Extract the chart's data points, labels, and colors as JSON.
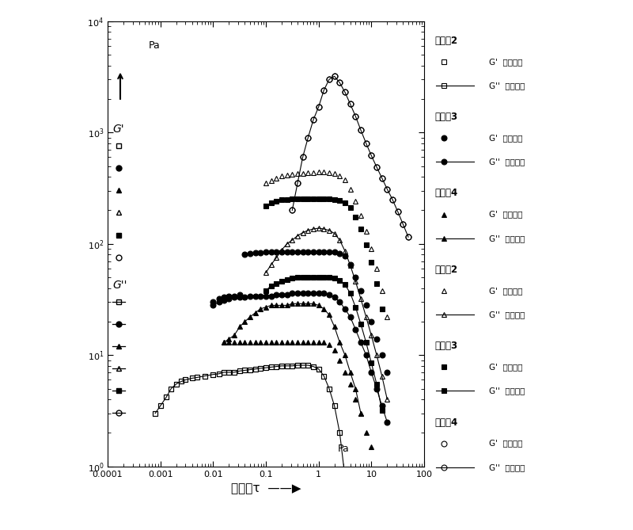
{
  "background_color": "#ffffff",
  "xlim_left": 0.0004,
  "xlim_right": 100,
  "ylim_bottom": 1.0,
  "ylim_top": 10000,
  "xlabel": "剪应力τ  ——▶",
  "xtick_vals": [
    0.0001,
    0.001,
    0.01,
    0.1,
    1,
    10,
    100
  ],
  "xtick_labels": [
    "0.0001",
    "0.001",
    "0.01",
    "0.1",
    "1",
    "10",
    "100"
  ],
  "ytick_vals": [
    1,
    10,
    100,
    1000,
    10000
  ],
  "ytick_labels": [
    "10$^0$",
    "10$^1$",
    "10$^2$",
    "10$^3$",
    "10$^4$"
  ],
  "series": [
    {
      "label": "ex2_Gprime",
      "marker": "s",
      "fillstyle": "none",
      "linestyle": "none",
      "color": "black",
      "ms": 4.5,
      "x": [
        0.0008,
        0.001,
        0.0013,
        0.0016,
        0.002,
        0.0025,
        0.003,
        0.004,
        0.005,
        0.007,
        0.01,
        0.013,
        0.016,
        0.02,
        0.025,
        0.032,
        0.04,
        0.05,
        0.063,
        0.079,
        0.1,
        0.126,
        0.158,
        0.2,
        0.251,
        0.316,
        0.398,
        0.5,
        0.631,
        0.794,
        1.0,
        1.259,
        1.585,
        1.995,
        2.512,
        3.162
      ],
      "y": [
        3.0,
        3.5,
        4.2,
        5.0,
        5.5,
        5.8,
        6.0,
        6.2,
        6.3,
        6.5,
        6.7,
        6.8,
        7.0,
        7.0,
        7.0,
        7.2,
        7.3,
        7.4,
        7.5,
        7.6,
        7.7,
        7.8,
        7.9,
        8.0,
        8.0,
        8.0,
        8.1,
        8.1,
        8.1,
        7.9,
        7.5,
        6.5,
        5.0,
        3.5,
        2.0,
        0.8
      ]
    },
    {
      "label": "ex2_Gdprime",
      "marker": "s",
      "fillstyle": "none",
      "linestyle": "-",
      "color": "black",
      "ms": 4.5,
      "x": [
        0.0008,
        0.001,
        0.0013,
        0.0016,
        0.002,
        0.0025,
        0.003,
        0.004,
        0.005,
        0.007,
        0.01,
        0.013,
        0.016,
        0.02,
        0.025,
        0.032,
        0.04,
        0.05,
        0.063,
        0.079,
        0.1,
        0.126,
        0.158,
        0.2,
        0.251,
        0.316,
        0.398,
        0.5,
        0.631,
        0.794,
        1.0,
        1.259,
        1.585,
        1.995,
        2.512,
        3.162
      ],
      "y": [
        3.0,
        3.5,
        4.2,
        5.0,
        5.5,
        5.8,
        6.0,
        6.2,
        6.3,
        6.5,
        6.7,
        6.8,
        7.0,
        7.0,
        7.0,
        7.2,
        7.3,
        7.4,
        7.5,
        7.6,
        7.7,
        7.8,
        7.9,
        8.0,
        8.0,
        8.0,
        8.1,
        8.1,
        8.1,
        7.9,
        7.5,
        6.5,
        5.0,
        3.5,
        2.0,
        0.8
      ]
    },
    {
      "label": "ex3_Gprime",
      "marker": "o",
      "fillstyle": "full",
      "linestyle": "none",
      "color": "black",
      "ms": 5,
      "x": [
        0.01,
        0.013,
        0.016,
        0.02,
        0.025,
        0.032,
        0.04,
        0.05,
        0.063,
        0.079,
        0.1,
        0.126,
        0.158,
        0.2,
        0.251,
        0.316,
        0.398,
        0.5,
        0.631,
        0.794,
        1.0,
        1.259,
        1.585,
        1.995,
        2.512,
        3.162,
        3.981,
        5.012,
        6.31,
        7.943,
        10.0,
        12.59,
        15.85,
        19.95
      ],
      "y": [
        30,
        32,
        33,
        34,
        34,
        35,
        80,
        82,
        83,
        83,
        84,
        84,
        85,
        85,
        85,
        85,
        85,
        85,
        85,
        85,
        85,
        85,
        85,
        85,
        82,
        78,
        65,
        50,
        38,
        28,
        20,
        14,
        10,
        7
      ]
    },
    {
      "label": "ex3_Gdprime",
      "marker": "o",
      "fillstyle": "full",
      "linestyle": "-",
      "color": "black",
      "ms": 5,
      "x": [
        0.01,
        0.013,
        0.016,
        0.02,
        0.025,
        0.032,
        0.04,
        0.05,
        0.063,
        0.079,
        0.1,
        0.126,
        0.158,
        0.2,
        0.251,
        0.316,
        0.398,
        0.5,
        0.631,
        0.794,
        1.0,
        1.259,
        1.585,
        1.995,
        2.512,
        3.162,
        3.981,
        5.012,
        6.31,
        7.943,
        10.0,
        12.59,
        15.85,
        19.95
      ],
      "y": [
        28,
        30,
        31,
        32,
        33,
        33,
        33,
        34,
        34,
        34,
        34,
        34,
        35,
        35,
        35,
        36,
        36,
        36,
        36,
        36,
        36,
        36,
        35,
        33,
        30,
        26,
        22,
        17,
        13,
        10,
        7,
        5,
        3.5,
        2.5
      ]
    },
    {
      "label": "ex4_Gprime",
      "marker": "^",
      "fillstyle": "full",
      "linestyle": "none",
      "color": "black",
      "ms": 5,
      "x": [
        0.016,
        0.02,
        0.025,
        0.032,
        0.04,
        0.05,
        0.063,
        0.079,
        0.1,
        0.126,
        0.158,
        0.2,
        0.251,
        0.316,
        0.398,
        0.5,
        0.631,
        0.794,
        1.0,
        1.259,
        1.585,
        1.995,
        2.512,
        3.162,
        3.981,
        5.012,
        6.31,
        7.943,
        10.0
      ],
      "y": [
        13,
        13,
        13,
        13,
        13,
        13,
        13,
        13,
        13,
        13,
        13,
        13,
        13,
        13,
        13,
        13,
        13,
        13,
        13,
        13,
        12.5,
        11,
        9,
        7,
        5.5,
        4,
        3,
        2,
        1.5
      ]
    },
    {
      "label": "ex4_Gdprime",
      "marker": "^",
      "fillstyle": "full",
      "linestyle": "-",
      "color": "black",
      "ms": 5,
      "x": [
        0.016,
        0.02,
        0.025,
        0.032,
        0.04,
        0.05,
        0.063,
        0.079,
        0.1,
        0.126,
        0.158,
        0.2,
        0.251,
        0.316,
        0.398,
        0.5,
        0.631,
        0.794,
        1.0,
        1.259,
        1.585,
        1.995,
        2.512,
        3.162,
        3.981,
        5.012,
        6.31
      ],
      "y": [
        13,
        14,
        15,
        18,
        20,
        22,
        24,
        26,
        27,
        28,
        28,
        28,
        28,
        29,
        29,
        29,
        29,
        29,
        28,
        26,
        23,
        18,
        13,
        10,
        7,
        5,
        3
      ]
    },
    {
      "label": "cp2_Gprime",
      "marker": "^",
      "fillstyle": "none",
      "linestyle": "none",
      "color": "black",
      "ms": 5,
      "x": [
        0.1,
        0.126,
        0.158,
        0.2,
        0.251,
        0.316,
        0.398,
        0.5,
        0.631,
        0.794,
        1.0,
        1.259,
        1.585,
        1.995,
        2.512,
        3.162,
        3.981,
        5.012,
        6.31,
        7.943,
        10.0,
        12.59,
        15.85,
        19.95
      ],
      "y": [
        350,
        370,
        390,
        405,
        415,
        420,
        425,
        430,
        435,
        438,
        440,
        440,
        438,
        430,
        410,
        375,
        310,
        240,
        180,
        130,
        90,
        60,
        38,
        22
      ]
    },
    {
      "label": "cp2_Gdprime",
      "marker": "^",
      "fillstyle": "none",
      "linestyle": "-",
      "color": "black",
      "ms": 5,
      "x": [
        0.1,
        0.126,
        0.158,
        0.2,
        0.251,
        0.316,
        0.398,
        0.5,
        0.631,
        0.794,
        1.0,
        1.259,
        1.585,
        1.995,
        2.512,
        3.162,
        3.981,
        5.012,
        6.31,
        7.943,
        10.0,
        12.59,
        15.85,
        19.95
      ],
      "y": [
        55,
        65,
        75,
        88,
        100,
        108,
        118,
        126,
        132,
        136,
        138,
        136,
        132,
        124,
        108,
        86,
        64,
        46,
        32,
        22,
        15,
        10,
        6.5,
        4
      ]
    },
    {
      "label": "cp3_Gprime",
      "marker": "s",
      "fillstyle": "full",
      "linestyle": "none",
      "color": "black",
      "ms": 5,
      "x": [
        0.1,
        0.126,
        0.158,
        0.2,
        0.251,
        0.316,
        0.398,
        0.5,
        0.631,
        0.794,
        1.0,
        1.259,
        1.585,
        1.995,
        2.512,
        3.162,
        3.981,
        5.012,
        6.31,
        7.943,
        10.0,
        12.59,
        15.85
      ],
      "y": [
        220,
        232,
        242,
        248,
        251,
        252,
        253,
        253,
        253,
        253,
        253,
        253,
        252,
        250,
        246,
        235,
        210,
        175,
        135,
        98,
        68,
        44,
        26
      ]
    },
    {
      "label": "cp3_Gdprime",
      "marker": "s",
      "fillstyle": "full",
      "linestyle": "-",
      "color": "black",
      "ms": 5,
      "x": [
        0.1,
        0.126,
        0.158,
        0.2,
        0.251,
        0.316,
        0.398,
        0.5,
        0.631,
        0.794,
        1.0,
        1.259,
        1.585,
        1.995,
        2.512,
        3.162,
        3.981,
        5.012,
        6.31,
        7.943,
        10.0,
        12.59,
        15.85
      ],
      "y": [
        38,
        42,
        44,
        46,
        48,
        49,
        50,
        50,
        50,
        50,
        50,
        50,
        50,
        49,
        47,
        43,
        36,
        27,
        19,
        13,
        8.5,
        5.5,
        3.2
      ]
    },
    {
      "label": "cp4_Gprime",
      "marker": "o",
      "fillstyle": "none",
      "linestyle": "none",
      "color": "black",
      "ms": 5,
      "x": [
        0.316,
        0.398,
        0.5,
        0.631,
        0.794,
        1.0,
        1.259,
        1.585,
        1.995,
        2.512,
        3.162,
        3.981,
        5.012,
        6.31,
        7.943,
        10.0,
        12.59,
        15.85,
        19.95,
        25.12,
        31.62,
        39.81,
        50.12
      ],
      "y": [
        200,
        350,
        600,
        900,
        1300,
        1700,
        2400,
        3000,
        3200,
        2800,
        2300,
        1800,
        1400,
        1050,
        800,
        620,
        490,
        390,
        310,
        250,
        195,
        150,
        115
      ]
    },
    {
      "label": "cp4_Gdprime",
      "marker": "o",
      "fillstyle": "none",
      "linestyle": "-",
      "color": "black",
      "ms": 5,
      "x": [
        0.316,
        0.398,
        0.5,
        0.631,
        0.794,
        1.0,
        1.259,
        1.585,
        1.995,
        2.512,
        3.162,
        3.981,
        5.012,
        6.31,
        7.943,
        10.0,
        12.59,
        15.85,
        19.95,
        25.12,
        31.62,
        39.81,
        50.12
      ],
      "y": [
        200,
        350,
        600,
        900,
        1300,
        1700,
        2400,
        3000,
        3200,
        2800,
        2300,
        1800,
        1400,
        1050,
        800,
        620,
        490,
        390,
        310,
        250,
        195,
        150,
        115
      ]
    }
  ],
  "legend_groups": [
    {
      "header": "实施例2",
      "marker": "s",
      "fillstyle": "none"
    },
    {
      "header": "实施例3",
      "marker": "o",
      "fillstyle": "full"
    },
    {
      "header": "实施例4",
      "marker": "^",
      "fillstyle": "full"
    },
    {
      "header": "比较例2",
      "marker": "^",
      "fillstyle": "none"
    },
    {
      "header": "比较例3",
      "marker": "s",
      "fillstyle": "full"
    },
    {
      "header": "比较例4",
      "marker": "o",
      "fillstyle": "none"
    }
  ],
  "gprime_label": "G’  储能模量",
  "gdprime_label": "G’’  损耗模量"
}
